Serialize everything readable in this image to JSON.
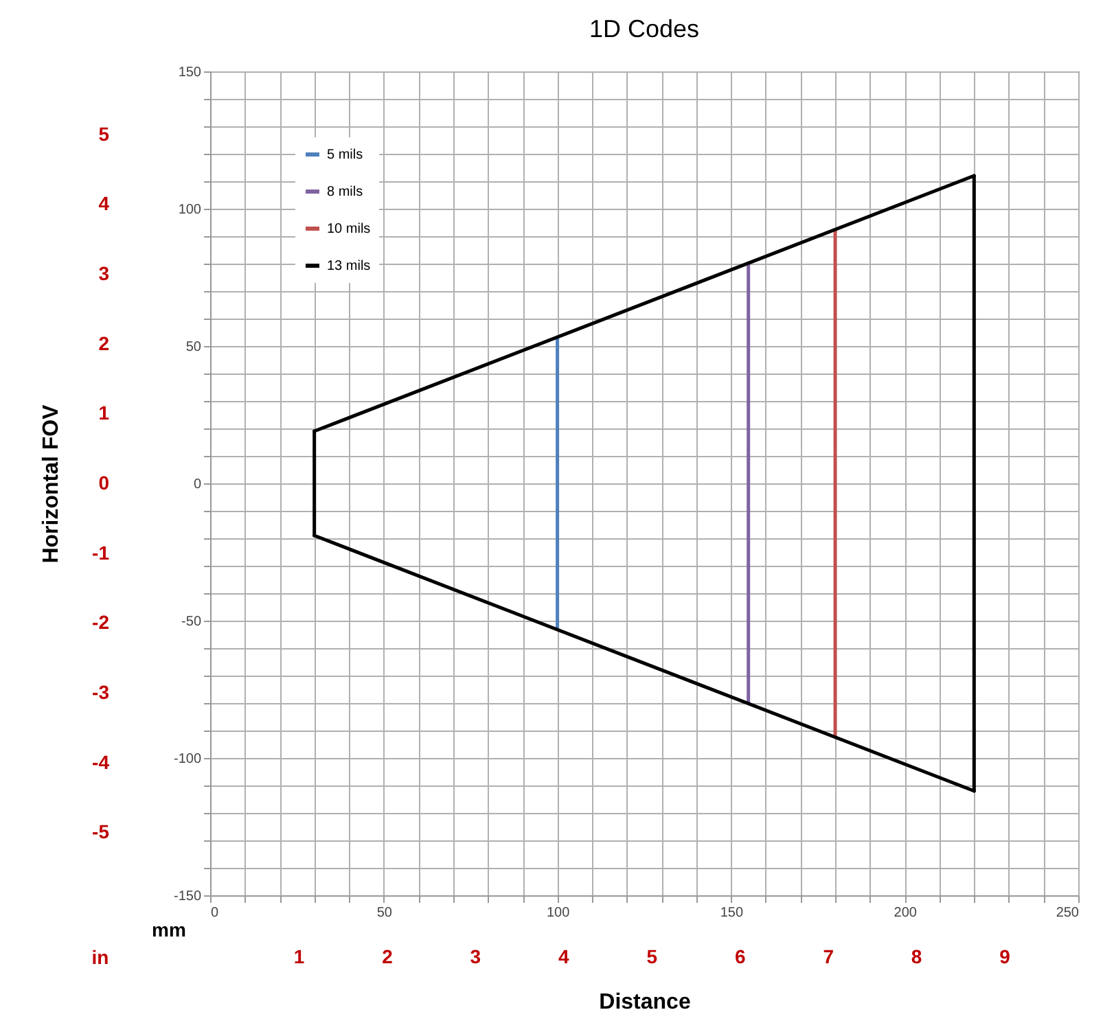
{
  "chart_data": {
    "type": "line",
    "title": "1D Codes",
    "xlabel": "Distance",
    "y2label": "Horizontal FOV",
    "xlim": [
      0,
      250
    ],
    "xticks": [
      0,
      {
        "value": 10,
        "label": null
      },
      {
        "value": 20,
        "label": null
      },
      {
        "value": 30,
        "label": null
      },
      {
        "value": 40,
        "label": null
      },
      50,
      {
        "value": 60,
        "label": null
      },
      {
        "value": 70,
        "label": null
      },
      {
        "value": 80,
        "label": null
      },
      {
        "value": 90,
        "label": null
      },
      100,
      {
        "value": 110,
        "label": null
      },
      {
        "value": 120,
        "label": null
      },
      {
        "value": 130,
        "label": null
      },
      {
        "value": 140,
        "label": null
      },
      150,
      {
        "value": 160,
        "label": null
      },
      {
        "value": 170,
        "label": null
      },
      {
        "value": 180,
        "label": null
      },
      {
        "value": 190,
        "label": null
      },
      200,
      {
        "value": 210,
        "label": null
      },
      {
        "value": 220,
        "label": null
      },
      {
        "value": 230,
        "label": null
      },
      {
        "value": 240,
        "label": null
      },
      250
    ],
    "ylim": [
      -150,
      150
    ],
    "yticks": [
      -150,
      {
        "value": -140,
        "label": null
      },
      {
        "value": -130,
        "label": null
      },
      {
        "value": -120,
        "label": null
      },
      {
        "value": -110,
        "label": null
      },
      -100,
      {
        "value": -90,
        "label": null
      },
      {
        "value": -80,
        "label": null
      },
      {
        "value": -70,
        "label": null
      },
      {
        "value": -60,
        "label": null
      },
      -50,
      {
        "value": -40,
        "label": null
      },
      {
        "value": -30,
        "label": null
      },
      {
        "value": -20,
        "label": null
      },
      {
        "value": -10,
        "label": null
      },
      0,
      {
        "value": 10,
        "label": null
      },
      {
        "value": 20,
        "label": null
      },
      {
        "value": 30,
        "label": null
      },
      {
        "value": 40,
        "label": null
      },
      50,
      {
        "value": 60,
        "label": null
      },
      {
        "value": 70,
        "label": null
      },
      {
        "value": 80,
        "label": null
      },
      {
        "value": 90,
        "label": null
      },
      100,
      {
        "value": 110,
        "label": null
      },
      {
        "value": 120,
        "label": null
      },
      {
        "value": 130,
        "label": null
      },
      {
        "value": 140,
        "label": null
      },
      150
    ],
    "x2lim": [
      0,
      9.84
    ],
    "x2ticks": [
      1,
      2,
      3,
      4,
      5,
      6,
      7,
      8,
      9
    ],
    "y2lim": [
      -5.9,
      5.9
    ],
    "y2ticks": [
      -5,
      -4,
      -3,
      -2,
      -1,
      0,
      1,
      2,
      3,
      4,
      5
    ],
    "grid": true,
    "legend": "top left",
    "line_style": "solid",
    "marker": "none",
    "annotations": [
      "mm",
      "in"
    ],
    "series": [
      {
        "name": "5 mils",
        "color": "#4f81bd",
        "x": [
          100,
          100
        ],
        "values": [
          53,
          -53
        ]
      },
      {
        "name": "8 mils",
        "color": "#8064a2",
        "x": [
          155,
          155
        ],
        "values": [
          80,
          -80
        ]
      },
      {
        "name": "10 mils",
        "color": "#c0504d",
        "x": [
          180,
          180
        ],
        "values": [
          92,
          -92
        ]
      },
      {
        "name": "13 mils",
        "color": "#000000",
        "x": [
          30,
          220
        ],
        "values": [
          19,
          112
        ]
      },
      {
        "color": "#000000",
        "x": [
          220,
          220
        ],
        "values": [
          112,
          -112
        ]
      },
      {
        "color": "#000000",
        "x": [
          30,
          220
        ],
        "values": [
          -19,
          -112
        ]
      },
      {
        "color": "#000000",
        "x": [
          30,
          30
        ],
        "values": [
          19,
          -19
        ]
      }
    ]
  }
}
